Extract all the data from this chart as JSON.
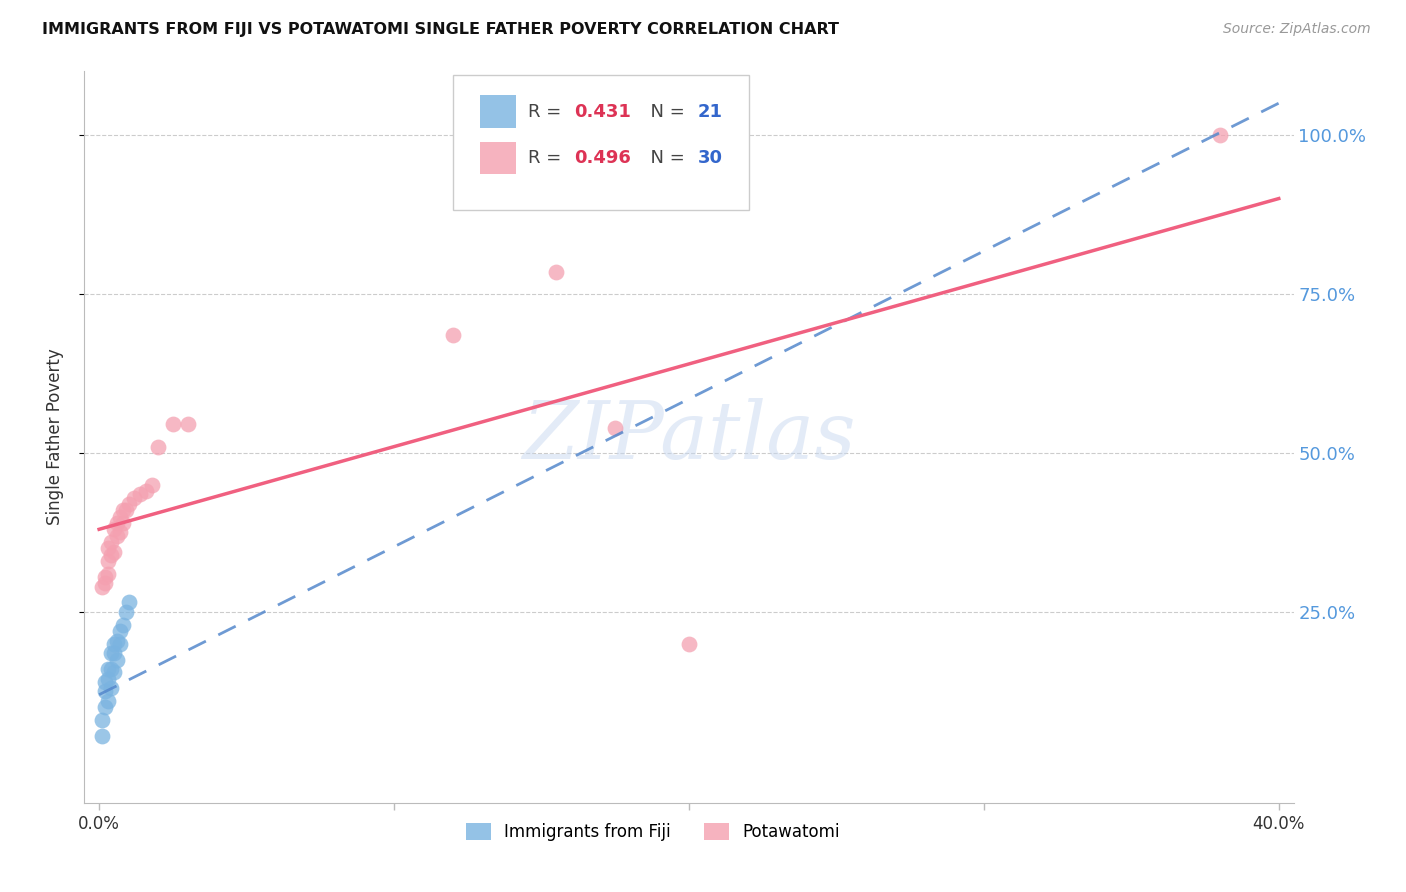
{
  "title": "IMMIGRANTS FROM FIJI VS POTAWATOMI SINGLE FATHER POVERTY CORRELATION CHART",
  "source": "Source: ZipAtlas.com",
  "ylabel": "Single Father Poverty",
  "ytick_labels": [
    "25.0%",
    "50.0%",
    "75.0%",
    "100.0%"
  ],
  "ytick_values": [
    0.25,
    0.5,
    0.75,
    1.0
  ],
  "xtick_major": [
    0.0,
    0.1,
    0.2,
    0.3,
    0.4
  ],
  "xlim": [
    -0.005,
    0.405
  ],
  "ylim": [
    -0.05,
    1.1
  ],
  "legend_label1": "Immigrants from Fiji",
  "legend_label2": "Potawatomi",
  "R1": 0.431,
  "N1": 21,
  "R2": 0.496,
  "N2": 30,
  "fiji_color": "#7ab3e0",
  "potawatomi_color": "#f4a0b0",
  "fiji_line_color": "#5588cc",
  "potawatomi_line_color": "#f06080",
  "watermark_text": "ZIPatlas",
  "fiji_x": [
    0.001,
    0.001,
    0.002,
    0.002,
    0.002,
    0.003,
    0.003,
    0.003,
    0.004,
    0.004,
    0.004,
    0.005,
    0.005,
    0.005,
    0.006,
    0.006,
    0.007,
    0.007,
    0.008,
    0.009,
    0.01
  ],
  "fiji_y": [
    0.055,
    0.08,
    0.1,
    0.125,
    0.14,
    0.11,
    0.145,
    0.16,
    0.13,
    0.16,
    0.185,
    0.155,
    0.185,
    0.2,
    0.175,
    0.205,
    0.2,
    0.22,
    0.23,
    0.25,
    0.265
  ],
  "potawatomi_x": [
    0.001,
    0.002,
    0.002,
    0.003,
    0.003,
    0.003,
    0.004,
    0.004,
    0.005,
    0.005,
    0.006,
    0.006,
    0.007,
    0.007,
    0.008,
    0.008,
    0.009,
    0.01,
    0.012,
    0.014,
    0.016,
    0.018,
    0.02,
    0.025,
    0.03,
    0.12,
    0.155,
    0.175,
    0.2,
    0.38
  ],
  "potawatomi_y": [
    0.29,
    0.295,
    0.305,
    0.31,
    0.33,
    0.35,
    0.34,
    0.36,
    0.345,
    0.38,
    0.37,
    0.39,
    0.375,
    0.4,
    0.39,
    0.41,
    0.41,
    0.42,
    0.43,
    0.435,
    0.44,
    0.45,
    0.51,
    0.545,
    0.545,
    0.685,
    0.785,
    0.54,
    0.2,
    1.0
  ],
  "fiji_line_x0": 0.0,
  "fiji_line_y0": 0.12,
  "fiji_line_x1": 0.4,
  "fiji_line_y1": 1.05,
  "pota_line_x0": 0.0,
  "pota_line_y0": 0.38,
  "pota_line_x1": 0.4,
  "pota_line_y1": 0.9
}
